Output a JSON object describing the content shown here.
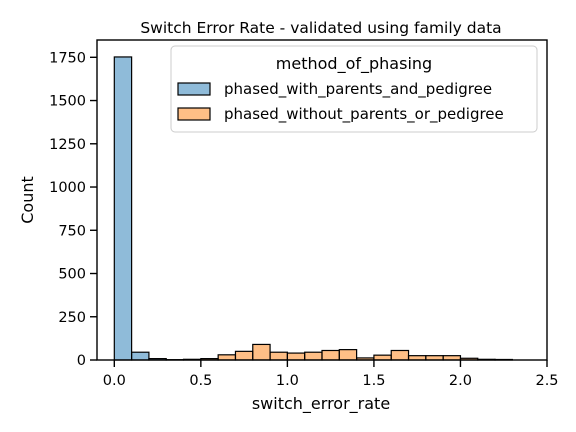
{
  "chart_data": {
    "type": "bar",
    "title": "Switch Error Rate - validated using family data",
    "xlabel": "switch_error_rate",
    "ylabel": "Count",
    "xlim": [
      -0.1,
      2.5
    ],
    "ylim": [
      0,
      1850
    ],
    "xticks": [
      0.0,
      0.5,
      1.0,
      1.5,
      2.0,
      2.5
    ],
    "xtick_labels": [
      "0.0",
      "0.5",
      "1.0",
      "1.5",
      "2.0",
      "2.5"
    ],
    "yticks": [
      0,
      250,
      500,
      750,
      1000,
      1250,
      1500,
      1750
    ],
    "ytick_labels": [
      "0",
      "250",
      "500",
      "750",
      "1000",
      "1250",
      "1500",
      "1750"
    ],
    "grid": false,
    "legend": {
      "title": "method_of_phasing",
      "placement": "top-right"
    },
    "bin_width": 0.1,
    "series": [
      {
        "name": "phased_with_parents_and_pedigree",
        "color": "#1f77b4",
        "bins": [
          {
            "x0": 0.0,
            "count": 1752
          },
          {
            "x0": 0.1,
            "count": 45
          },
          {
            "x0": 0.2,
            "count": 8
          },
          {
            "x0": 0.3,
            "count": 2
          }
        ]
      },
      {
        "name": "phased_without_parents_or_pedigree",
        "color": "#ff7f0e",
        "bins": [
          {
            "x0": 0.4,
            "count": 4
          },
          {
            "x0": 0.5,
            "count": 8
          },
          {
            "x0": 0.6,
            "count": 30
          },
          {
            "x0": 0.7,
            "count": 50
          },
          {
            "x0": 0.8,
            "count": 90
          },
          {
            "x0": 0.9,
            "count": 45
          },
          {
            "x0": 1.0,
            "count": 40
          },
          {
            "x0": 1.1,
            "count": 45
          },
          {
            "x0": 1.2,
            "count": 55
          },
          {
            "x0": 1.3,
            "count": 60
          },
          {
            "x0": 1.4,
            "count": 12
          },
          {
            "x0": 1.5,
            "count": 28
          },
          {
            "x0": 1.6,
            "count": 55
          },
          {
            "x0": 1.7,
            "count": 25
          },
          {
            "x0": 1.8,
            "count": 25
          },
          {
            "x0": 1.9,
            "count": 25
          },
          {
            "x0": 2.0,
            "count": 10
          },
          {
            "x0": 2.1,
            "count": 4
          },
          {
            "x0": 2.2,
            "count": 3
          }
        ]
      }
    ]
  }
}
